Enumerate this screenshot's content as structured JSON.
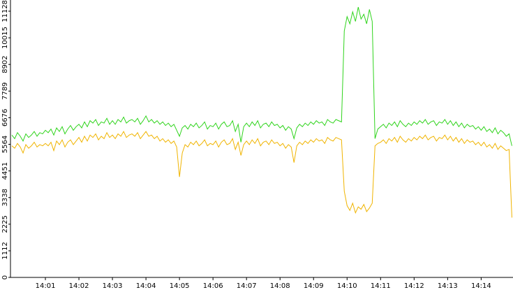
{
  "chart_data": {
    "type": "line",
    "x": [
      0,
      5,
      10,
      15,
      20,
      25,
      30,
      35,
      40,
      45,
      50,
      55,
      60,
      65,
      70,
      75,
      80,
      85,
      90,
      95,
      100,
      105,
      110,
      115,
      120,
      125,
      130,
      135,
      140,
      145,
      150,
      155,
      160,
      165,
      170,
      175,
      180,
      185,
      190,
      195,
      200,
      205,
      210,
      215,
      220,
      225,
      230,
      235,
      240,
      245,
      250,
      255,
      260,
      265,
      270,
      275,
      280,
      285,
      290,
      295,
      300,
      305,
      310,
      315,
      320,
      325,
      330,
      335,
      340,
      345,
      350,
      355,
      360,
      365,
      370,
      375,
      380,
      385,
      390,
      395,
      400,
      405,
      410,
      415,
      420,
      425,
      430,
      435,
      440,
      445,
      450,
      455,
      460,
      465,
      470,
      475,
      480,
      485,
      490,
      495,
      500,
      505,
      510,
      515,
      520,
      525,
      530,
      535,
      540,
      545,
      550,
      555,
      560,
      565,
      570,
      575,
      580,
      585,
      590,
      595,
      600,
      605,
      610,
      615,
      620,
      625,
      630,
      635,
      640,
      645,
      650,
      655,
      660,
      665,
      670,
      675,
      680,
      685,
      690,
      695,
      700,
      705,
      710,
      715,
      720,
      725,
      730,
      735,
      740,
      745,
      750,
      755,
      760,
      765,
      770,
      775,
      780,
      785,
      790,
      795,
      800,
      805,
      810,
      815,
      820,
      825,
      830,
      835,
      840,
      845,
      850,
      855,
      860,
      865,
      870,
      875,
      880,
      885,
      890,
      895
    ],
    "series": [
      {
        "color": "#2fd41c",
        "values": [
          5950,
          5800,
          6050,
          5900,
          5700,
          6000,
          5850,
          5950,
          6100,
          5900,
          6050,
          6000,
          6150,
          6050,
          6200,
          5950,
          6250,
          6100,
          6300,
          6000,
          6200,
          6350,
          6150,
          6300,
          6400,
          6250,
          6500,
          6300,
          6550,
          6450,
          6600,
          6350,
          6500,
          6450,
          6650,
          6400,
          6550,
          6400,
          6600,
          6500,
          6700,
          6450,
          6550,
          6600,
          6500,
          6650,
          6400,
          6550,
          6750,
          6500,
          6600,
          6450,
          6550,
          6400,
          6500,
          6350,
          6450,
          6300,
          6400,
          6150,
          5900,
          6250,
          6350,
          6200,
          6400,
          6300,
          6450,
          6250,
          6350,
          6500,
          6200,
          6350,
          6300,
          6450,
          6200,
          6400,
          6500,
          6300,
          6350,
          6550,
          6100,
          6400,
          5650,
          6300,
          6450,
          6300,
          6500,
          6350,
          6550,
          6250,
          6400,
          6450,
          6300,
          6500,
          6350,
          6400,
          6250,
          6350,
          6150,
          6300,
          6200,
          5800,
          6250,
          6400,
          6300,
          6450,
          6350,
          6500,
          6400,
          6550,
          6450,
          6500,
          6350,
          6600,
          6500,
          6450,
          6600,
          6550,
          6500,
          10300,
          10900,
          10600,
          11100,
          10700,
          11300,
          10800,
          11000,
          10600,
          11200,
          10700,
          5800,
          6200,
          6300,
          6400,
          6250,
          6450,
          6350,
          6500,
          6300,
          6550,
          6400,
          6300,
          6450,
          6350,
          6500,
          6400,
          6550,
          6450,
          6600,
          6400,
          6500,
          6550,
          6350,
          6500,
          6450,
          6600,
          6400,
          6550,
          6350,
          6500,
          6300,
          6450,
          6250,
          6400,
          6300,
          6350,
          6200,
          6300,
          6150,
          6300,
          6100,
          6200,
          6050,
          6250,
          6000,
          6150,
          6050,
          5900,
          6000,
          5500
        ]
      },
      {
        "color": "#f0b400",
        "values": [
          5500,
          5400,
          5600,
          5450,
          5200,
          5550,
          5400,
          5500,
          5650,
          5450,
          5550,
          5500,
          5600,
          5500,
          5650,
          5300,
          5700,
          5550,
          5750,
          5450,
          5650,
          5750,
          5550,
          5700,
          5850,
          5650,
          5900,
          5700,
          5950,
          5850,
          6000,
          5750,
          5900,
          5800,
          6050,
          5850,
          5950,
          5800,
          6000,
          5900,
          6100,
          5850,
          5950,
          6000,
          5900,
          6050,
          5800,
          5950,
          6100,
          5900,
          5950,
          5800,
          5900,
          5700,
          5800,
          5650,
          5750,
          5600,
          5700,
          5450,
          4200,
          5200,
          5550,
          5450,
          5650,
          5550,
          5700,
          5500,
          5600,
          5750,
          5500,
          5600,
          5550,
          5700,
          5450,
          5650,
          5750,
          5550,
          5600,
          5800,
          5350,
          5650,
          5100,
          5550,
          5700,
          5550,
          5750,
          5600,
          5800,
          5500,
          5650,
          5700,
          5550,
          5750,
          5600,
          5650,
          5500,
          5600,
          5400,
          5550,
          5450,
          4800,
          5500,
          5650,
          5550,
          5700,
          5600,
          5750,
          5650,
          5800,
          5700,
          5750,
          5600,
          5850,
          5750,
          5700,
          5850,
          5800,
          5750,
          3600,
          3000,
          2800,
          3100,
          2700,
          2950,
          2850,
          3050,
          2750,
          2900,
          3100,
          5500,
          5600,
          5650,
          5750,
          5600,
          5800,
          5700,
          5850,
          5650,
          5900,
          5750,
          5650,
          5800,
          5700,
          5850,
          5750,
          5900,
          5800,
          5950,
          5750,
          5850,
          5900,
          5700,
          5850,
          5800,
          5950,
          5750,
          5900,
          5700,
          5850,
          5650,
          5800,
          5600,
          5750,
          5650,
          5700,
          5550,
          5650,
          5500,
          5650,
          5450,
          5550,
          5400,
          5600,
          5350,
          5500,
          5400,
          5300,
          5350,
          2500
        ]
      }
    ],
    "xlim": [
      -21.25,
      897
    ],
    "xticks": [
      {
        "value": 60,
        "label": "14:01"
      },
      {
        "value": 120,
        "label": "14:02"
      },
      {
        "value": 180,
        "label": "14:03"
      },
      {
        "value": 240,
        "label": "14:04"
      },
      {
        "value": 300,
        "label": "14:05"
      },
      {
        "value": 360,
        "label": "14:06"
      },
      {
        "value": 420,
        "label": "14:07"
      },
      {
        "value": 480,
        "label": "14:08"
      },
      {
        "value": 540,
        "label": "14:09"
      },
      {
        "value": 600,
        "label": "14:10"
      },
      {
        "value": 660,
        "label": "14:11"
      },
      {
        "value": 720,
        "label": "14:12"
      },
      {
        "value": 780,
        "label": "14:13"
      },
      {
        "value": 840,
        "label": "14:14"
      }
    ],
    "ylim": [
      0,
      11595
    ],
    "yticks": [
      0,
      1112,
      2225,
      3338,
      4451,
      5564,
      6676,
      7789,
      8902,
      10015,
      11128
    ]
  }
}
